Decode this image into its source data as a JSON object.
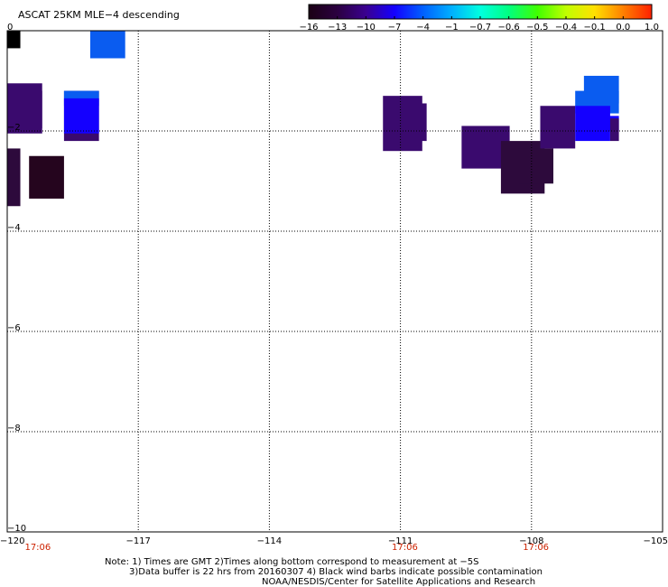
{
  "title": "ASCAT 25KM MLE−4 descending",
  "colorbar": {
    "labels": [
      "−16",
      "−13",
      "−10",
      "−7",
      "−4",
      "−1",
      "−0.7",
      "−0.6",
      "−0.5",
      "−0.4",
      "−0.1",
      "0.0",
      "1.0"
    ],
    "colors": [
      "#1a0014",
      "#2b0040",
      "#3a0090",
      "#1400ff",
      "#0060ff",
      "#00b0ff",
      "#00ffe0",
      "#00ff80",
      "#40ff00",
      "#c0ff00",
      "#ffe000",
      "#ff8000",
      "#ff2000"
    ]
  },
  "map": {
    "x_ticks": [
      "−120",
      "−117",
      "−114",
      "−111",
      "−108",
      "−105"
    ],
    "y_ticks": [
      "0",
      "−2",
      "−4",
      "−6",
      "−8",
      "−10"
    ],
    "lon_range": [
      -120,
      -105
    ],
    "lat_range": [
      -10,
      0
    ],
    "grid": "dotted",
    "time_labels": [
      {
        "text": "17:06",
        "lon": -119.3
      },
      {
        "text": "17:06",
        "lon": -110.9
      },
      {
        "text": "17:06",
        "lon": -107.9
      }
    ],
    "cells": [
      {
        "lon0": -120.0,
        "lon1": -119.7,
        "lat0": -0.35,
        "lat1": 0.0,
        "color": "#000000"
      },
      {
        "lon0": -118.1,
        "lon1": -117.3,
        "lat0": -0.55,
        "lat1": 0.0,
        "color": "#0a5cf0"
      },
      {
        "lon0": -120.0,
        "lon1": -119.2,
        "lat0": -2.05,
        "lat1": -1.05,
        "color": "#3a0a6e"
      },
      {
        "lon0": -119.3,
        "lon1": -119.2,
        "lat0": -1.95,
        "lat1": -1.2,
        "color": "#3a0a6e"
      },
      {
        "lon0": -118.7,
        "lon1": -117.9,
        "lat0": -2.2,
        "lat1": -1.2,
        "color": "#3a0a6e"
      },
      {
        "lon0": -118.7,
        "lon1": -117.9,
        "lat0": -1.5,
        "lat1": -1.2,
        "color": "#0a5cf0"
      },
      {
        "lon0": -118.7,
        "lon1": -117.9,
        "lat0": -2.05,
        "lat1": -1.35,
        "color": "#1400ff"
      },
      {
        "lon0": -120.0,
        "lon1": -119.7,
        "lat0": -3.5,
        "lat1": -2.35,
        "color": "#2d0a3c"
      },
      {
        "lon0": -119.5,
        "lon1": -118.7,
        "lat0": -3.35,
        "lat1": -2.5,
        "color": "#25051e"
      },
      {
        "lon0": -111.4,
        "lon1": -110.5,
        "lat0": -2.4,
        "lat1": -1.3,
        "color": "#3a0a6e"
      },
      {
        "lon0": -110.6,
        "lon1": -110.4,
        "lat0": -2.2,
        "lat1": -1.45,
        "color": "#3a0a6e"
      },
      {
        "lon0": -109.6,
        "lon1": -108.5,
        "lat0": -2.75,
        "lat1": -1.9,
        "color": "#3a0a6e"
      },
      {
        "lon0": -108.7,
        "lon1": -107.7,
        "lat0": -3.25,
        "lat1": -2.2,
        "color": "#2d0a3c"
      },
      {
        "lon0": -108.3,
        "lon1": -107.5,
        "lat0": -3.05,
        "lat1": -2.35,
        "color": "#2d0a3c"
      },
      {
        "lon0": -107.8,
        "lon1": -107.0,
        "lat0": -2.35,
        "lat1": -1.5,
        "color": "#3a0a6e"
      },
      {
        "lon0": -106.8,
        "lon1": -106.0,
        "lat0": -1.45,
        "lat1": -0.9,
        "color": "#0a5cf0"
      },
      {
        "lon0": -107.0,
        "lon1": -106.0,
        "lat0": -1.65,
        "lat1": -1.2,
        "color": "#0a5cf0"
      },
      {
        "lon0": -107.0,
        "lon1": -106.2,
        "lat0": -2.2,
        "lat1": -1.5,
        "color": "#1400ff"
      },
      {
        "lon0": -106.8,
        "lon1": -106.0,
        "lat0": -2.0,
        "lat1": -1.7,
        "color": "#1400ff"
      },
      {
        "lon0": -106.2,
        "lon1": -106.0,
        "lat0": -2.2,
        "lat1": -1.75,
        "color": "#3a0a6e"
      }
    ]
  },
  "notes": {
    "line1": "Note: 1) Times are GMT 2)Times along bottom correspond to measurement at −5S",
    "line2": "3)Data buffer is 22 hrs from 20160307 4) Black wind barbs indicate possible contamination",
    "line3": "NOAA/NESDIS/Center for Satellite Applications and Research"
  }
}
